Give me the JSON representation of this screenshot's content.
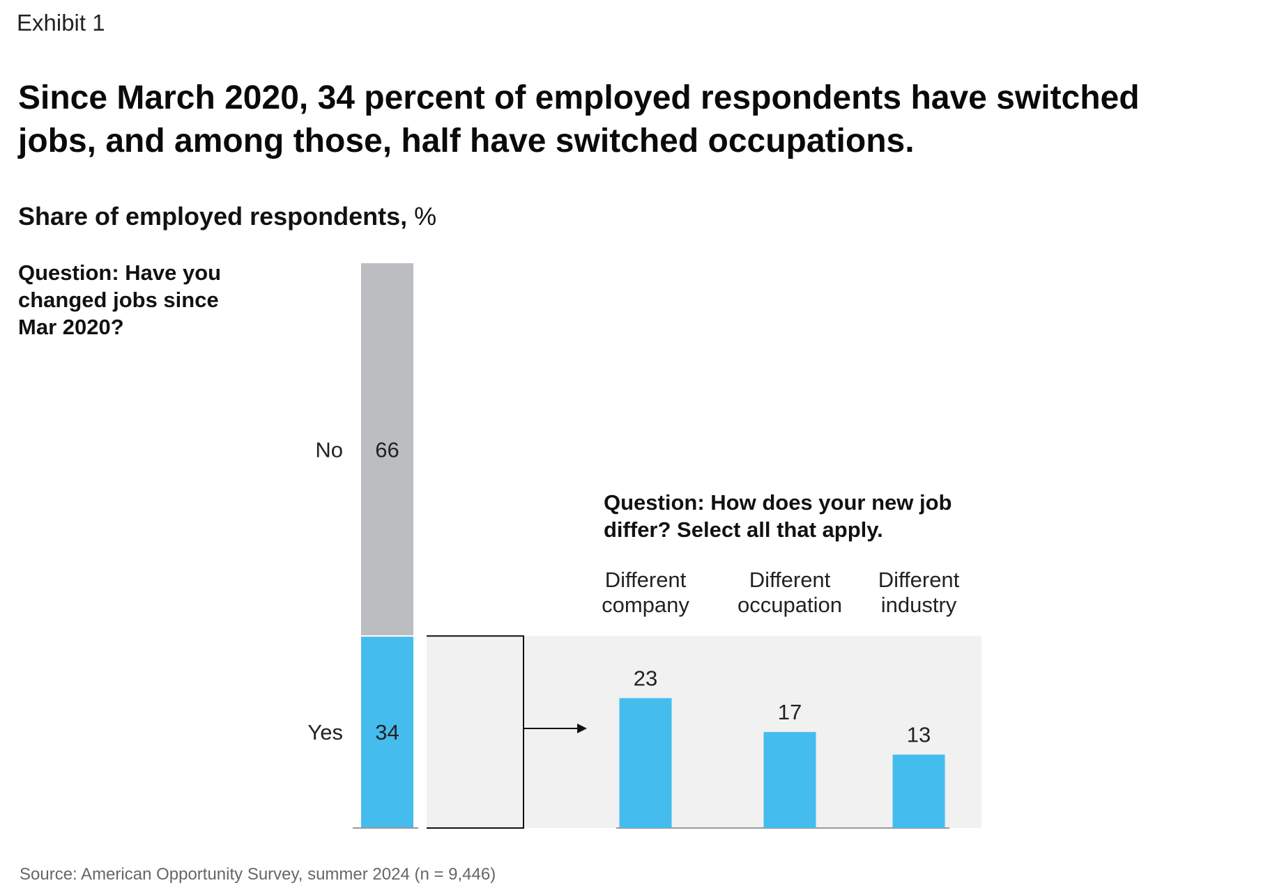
{
  "exhibit_label": "Exhibit 1",
  "title": "Since March 2020, 34 percent of employed respondents have switched jobs, and among those, half have switched occupations.",
  "subtitle": {
    "main": "Share of employed respondents,",
    "unit": "%"
  },
  "question1": "Question: Have you changed jobs since Mar 2020?",
  "question2": "Question: How does your new job differ? Select all that apply.",
  "source": "Source: American Opportunity Survey, summer 2024 (n = 9,446)",
  "colors": {
    "no": "#bcbdc0",
    "yes": "#45bcee",
    "panel": "#f1f1f1",
    "axis": "#999999",
    "line": "#111111"
  },
  "chart_data": [
    {
      "type": "bar",
      "stacked": true,
      "question": "Question: Have you changed jobs since Mar 2020?",
      "segments": [
        {
          "label": "Yes",
          "value": 34
        },
        {
          "label": "No",
          "value": 66
        }
      ],
      "unit": "%"
    },
    {
      "type": "bar",
      "question": "Question: How does your new job differ? Select all that apply.",
      "categories": [
        {
          "label": [
            "Different",
            "company"
          ],
          "value": 23
        },
        {
          "label": [
            "Different",
            "occupation"
          ],
          "value": 17
        },
        {
          "label": [
            "Different",
            "industry"
          ],
          "value": 13
        }
      ],
      "unit": "%"
    }
  ]
}
